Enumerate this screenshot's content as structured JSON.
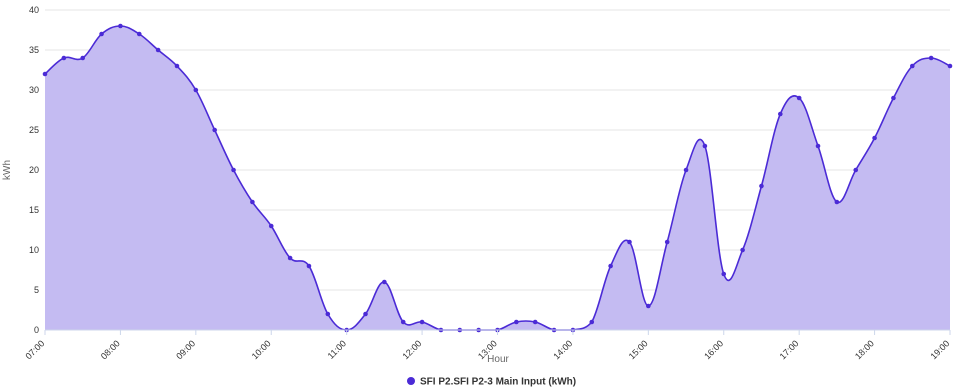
{
  "chart_data": {
    "type": "area",
    "xlabel": "Hour",
    "ylabel": "kWh",
    "ylim": [
      0,
      40
    ],
    "yticks": [
      0,
      5,
      10,
      15,
      20,
      25,
      30,
      35,
      40
    ],
    "xlim": [
      7.0,
      19.0
    ],
    "xticks": [
      "07:00",
      "08:00",
      "09:00",
      "10:00",
      "11:00",
      "12:00",
      "13:00",
      "14:00",
      "15:00",
      "16:00",
      "17:00",
      "18:00",
      "19:00"
    ],
    "grid": "horizontal",
    "legend_position": "bottom-center",
    "series": [
      {
        "name": "SFI P2.SFI P2-3 Main Input (kWh)",
        "color": "#4b2bd6",
        "fill": "#c4bbf2",
        "x": [
          7.0,
          7.25,
          7.5,
          7.75,
          8.0,
          8.25,
          8.5,
          8.75,
          9.0,
          9.25,
          9.5,
          9.75,
          10.0,
          10.25,
          10.5,
          10.75,
          11.0,
          11.25,
          11.5,
          11.75,
          12.0,
          12.25,
          12.5,
          12.75,
          13.0,
          13.25,
          13.5,
          13.75,
          14.0,
          14.25,
          14.5,
          14.75,
          15.0,
          15.25,
          15.5,
          15.75,
          16.0,
          16.25,
          16.5,
          16.75,
          17.0,
          17.25,
          17.5,
          17.75,
          18.0,
          18.25,
          18.5,
          18.75,
          19.0
        ],
        "values": [
          32,
          34,
          34,
          37,
          38,
          37,
          35,
          33,
          30,
          25,
          20,
          16,
          13,
          9,
          8,
          2,
          0,
          2,
          6,
          1,
          1,
          0,
          0,
          0,
          0,
          1,
          1,
          0,
          0,
          1,
          8,
          11,
          3,
          11,
          20,
          23,
          7,
          10,
          18,
          27,
          29,
          23,
          16,
          20,
          24,
          29,
          33,
          34,
          33
        ]
      }
    ]
  }
}
